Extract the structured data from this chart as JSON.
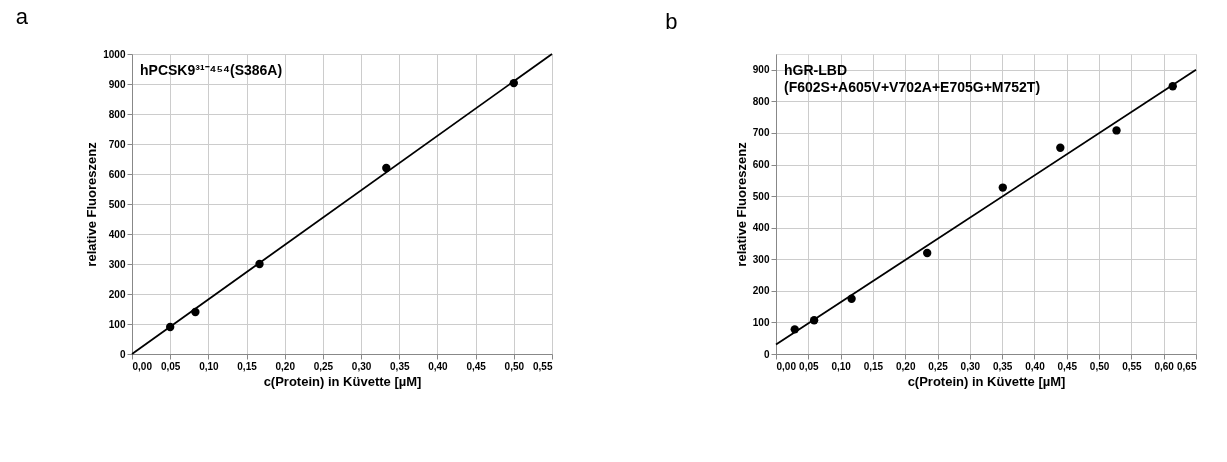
{
  "chart_data": [
    {
      "type": "scatter",
      "title": "a",
      "xlabel": "c(Protein) in Küvette [µM]",
      "ylabel": "relative Fluoreszenz",
      "annotations": [
        "hPCSK9³¹⁻⁴⁵⁴(S386A)"
      ],
      "x": [
        0.05,
        0.083,
        0.167,
        0.333,
        0.5
      ],
      "series": [
        {
          "type": "scatter",
          "color": "#000000",
          "marker": "circle",
          "values": [
            90,
            140,
            300,
            620,
            903
          ]
        },
        {
          "type": "line",
          "color": "#000000",
          "x": [
            0,
            0.55
          ],
          "values": [
            0,
            1000
          ]
        }
      ],
      "xlim": [
        0,
        0.55
      ],
      "ylim": [
        0,
        1000
      ],
      "xticks": [
        {
          "value": 0,
          "label": "0,00"
        },
        {
          "value": 0.05,
          "label": "0,05"
        },
        {
          "value": 0.1,
          "label": "0,10"
        },
        {
          "value": 0.15,
          "label": "0,15"
        },
        {
          "value": 0.2,
          "label": "0,20"
        },
        {
          "value": 0.25,
          "label": "0,25"
        },
        {
          "value": 0.3,
          "label": "0,30"
        },
        {
          "value": 0.35,
          "label": "0,35"
        },
        {
          "value": 0.4,
          "label": "0,40"
        },
        {
          "value": 0.45,
          "label": "0,45"
        },
        {
          "value": 0.5,
          "label": "0,50"
        },
        {
          "value": 0.55,
          "label": "0,55"
        }
      ],
      "yticks": [
        0,
        100,
        200,
        300,
        400,
        500,
        600,
        700,
        800,
        900,
        1000
      ],
      "grid": true
    },
    {
      "type": "scatter",
      "title": "b",
      "xlabel": "c(Protein) in Küvette [µM]",
      "ylabel": "relative Fluoreszenz",
      "annotations": [
        "hGR-LBD",
        "(F602S+A605V+V702A+E705G+M752T)"
      ],
      "x": [
        0.029,
        0.059,
        0.117,
        0.234,
        0.351,
        0.44,
        0.527,
        0.614
      ],
      "series": [
        {
          "type": "scatter",
          "color": "#000000",
          "marker": "circle",
          "values": [
            78,
            107,
            175,
            320,
            527,
            653,
            708,
            848
          ]
        },
        {
          "type": "line",
          "color": "#000000",
          "x": [
            0,
            0.65
          ],
          "values": [
            30,
            900
          ]
        }
      ],
      "xlim": [
        0,
        0.65
      ],
      "ylim": [
        0,
        950
      ],
      "xticks": [
        {
          "value": 0,
          "label": "0,00"
        },
        {
          "value": 0.05,
          "label": "0,05"
        },
        {
          "value": 0.1,
          "label": "0,10"
        },
        {
          "value": 0.15,
          "label": "0,15"
        },
        {
          "value": 0.2,
          "label": "0,20"
        },
        {
          "value": 0.25,
          "label": "0,25"
        },
        {
          "value": 0.3,
          "label": "0,30"
        },
        {
          "value": 0.35,
          "label": "0,35"
        },
        {
          "value": 0.4,
          "label": "0,40"
        },
        {
          "value": 0.45,
          "label": "0,45"
        },
        {
          "value": 0.5,
          "label": "0,50"
        },
        {
          "value": 0.55,
          "label": "0,55"
        },
        {
          "value": 0.6,
          "label": "0,60"
        },
        {
          "value": 0.65,
          "label": "0,65"
        }
      ],
      "yticks": [
        0,
        100,
        200,
        300,
        400,
        500,
        600,
        700,
        800,
        900
      ],
      "grid": true
    }
  ]
}
